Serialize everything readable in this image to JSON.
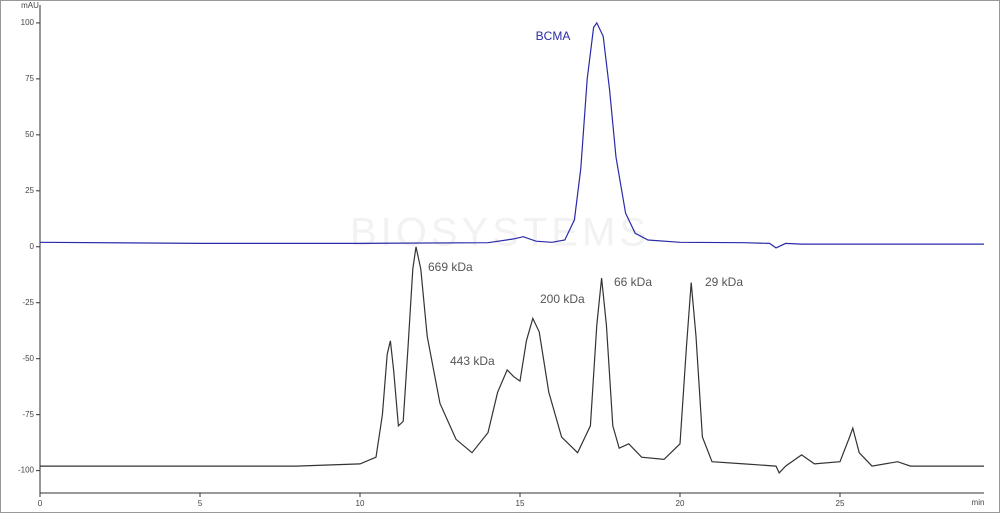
{
  "chart_data": {
    "type": "line",
    "ylabel": "mAU",
    "xlabel": "min",
    "watermark": "BIOSYSTEMS",
    "xlim": [
      0,
      29.5
    ],
    "ylim": [
      -110,
      108
    ],
    "xticks": [
      0,
      5,
      10,
      15,
      20,
      25
    ],
    "yticks": [
      100,
      75,
      50,
      25,
      0,
      -25,
      -50,
      -75,
      -100
    ],
    "series": [
      {
        "name": "BCMA",
        "color": "#2a2aa8",
        "x": [
          0,
          5,
          10,
          14,
          14.8,
          15.1,
          15.5,
          16,
          16.4,
          16.7,
          16.9,
          17.1,
          17.3,
          17.4,
          17.6,
          17.8,
          18.0,
          18.3,
          18.6,
          19,
          20,
          22,
          22.8,
          23.0,
          23.3,
          23.8,
          25,
          29.5
        ],
        "values": [
          2,
          1.5,
          1.5,
          1.8,
          3.5,
          4.5,
          2.5,
          2,
          3,
          12,
          35,
          75,
          98,
          100,
          94,
          70,
          40,
          15,
          6,
          3,
          2,
          1.8,
          1.5,
          -0.5,
          1.5,
          1.2,
          1.2,
          1.2
        ]
      },
      {
        "color": "#333333",
        "x": [
          0,
          8,
          10,
          10.5,
          10.7,
          10.85,
          10.95,
          11.05,
          11.2,
          11.35,
          11.5,
          11.65,
          11.75,
          11.9,
          12.1,
          12.5,
          13,
          13.5,
          14,
          14.3,
          14.6,
          14.8,
          15.0,
          15.2,
          15.4,
          15.6,
          15.9,
          16.3,
          16.8,
          17.2,
          17.4,
          17.55,
          17.7,
          17.9,
          18.1,
          18.4,
          18.8,
          19.5,
          20.0,
          20.2,
          20.35,
          20.5,
          20.7,
          21,
          22,
          23,
          23.1,
          23.3,
          23.8,
          24.2,
          25,
          25.3,
          25.4,
          25.6,
          26,
          26.8,
          27.2,
          29.5
        ],
        "values": [
          -98,
          -98,
          -97,
          -94,
          -75,
          -48,
          -42,
          -55,
          -80,
          -78,
          -45,
          -10,
          0,
          -10,
          -40,
          -70,
          -86,
          -92,
          -83,
          -65,
          -55,
          -58,
          -60,
          -42,
          -32,
          -38,
          -65,
          -85,
          -92,
          -80,
          -35,
          -14,
          -35,
          -80,
          -90,
          -88,
          -94,
          -95,
          -88,
          -45,
          -16,
          -40,
          -85,
          -96,
          -97,
          -98,
          -101,
          -98,
          -93,
          -97,
          -96,
          -85,
          -81,
          -92,
          -98,
          -96,
          -98,
          -98
        ]
      }
    ],
    "annotations": [
      "669 kDa",
      "443 kDa",
      "200 kDa",
      "66 kDa",
      "29 kDa"
    ]
  }
}
